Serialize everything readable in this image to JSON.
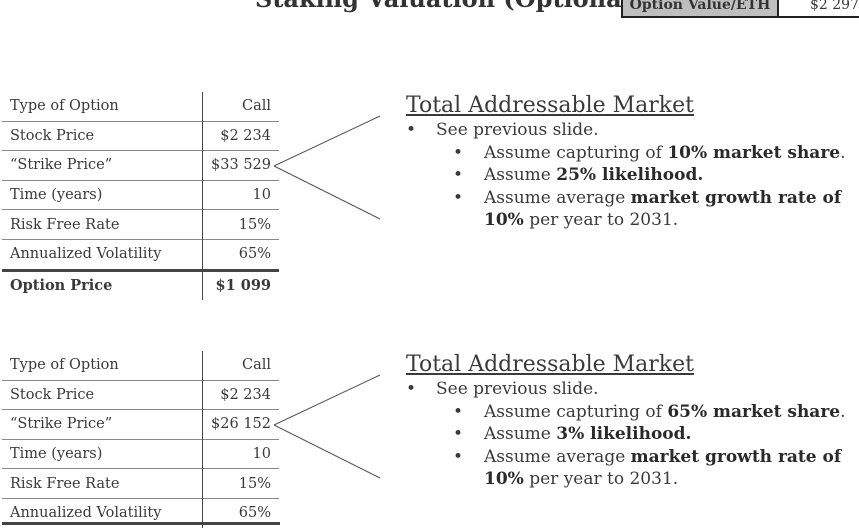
{
  "header": {
    "title": "Staking Valuation (Optionality)",
    "option_value_label": "Option Value/ETH",
    "option_value": "$2 297"
  },
  "tables": [
    {
      "rows": [
        {
          "label": "Type of Option",
          "value": "Call"
        },
        {
          "label": "Stock Price",
          "value": "$2 234"
        },
        {
          "label": "“Strike Price”",
          "value": "$33 529"
        },
        {
          "label": "Time (years)",
          "value": "10"
        },
        {
          "label": "Risk Free Rate",
          "value": "15%"
        },
        {
          "label": "Annualized Volatility",
          "value": "65%"
        }
      ],
      "total": {
        "label": "Option Price",
        "value": "$1 099"
      }
    },
    {
      "rows": [
        {
          "label": "Type of Option",
          "value": "Call"
        },
        {
          "label": "Stock Price",
          "value": "$2 234"
        },
        {
          "label": "“Strike Price”",
          "value": "$26 152"
        },
        {
          "label": "Time (years)",
          "value": "10"
        },
        {
          "label": "Risk Free Rate",
          "value": "15%"
        },
        {
          "label": "Annualized Volatility",
          "value": "65%"
        }
      ]
    }
  ],
  "tam": [
    {
      "title": "Total Addressable Market",
      "bullet": "See previous slide.",
      "sub1_pre": "Assume capturing of ",
      "sub1_bold": "10% market share",
      "sub1_post": ".",
      "sub2_pre": "Assume ",
      "sub2_bold": "25% likelihood.",
      "sub3_pre": "Assume average ",
      "sub3_bold": "market growth rate of 10%",
      "sub3_post": " per year to 2031."
    },
    {
      "title": "Total Addressable Market",
      "bullet": "See previous slide.",
      "sub1_pre": "Assume capturing of ",
      "sub1_bold": "65% market share",
      "sub1_post": ".",
      "sub2_pre": "Assume ",
      "sub2_bold": "3% likelihood.",
      "sub3_pre": "Assume average ",
      "sub3_bold": "market growth rate of 10%",
      "sub3_post": " per year to 2031."
    }
  ]
}
